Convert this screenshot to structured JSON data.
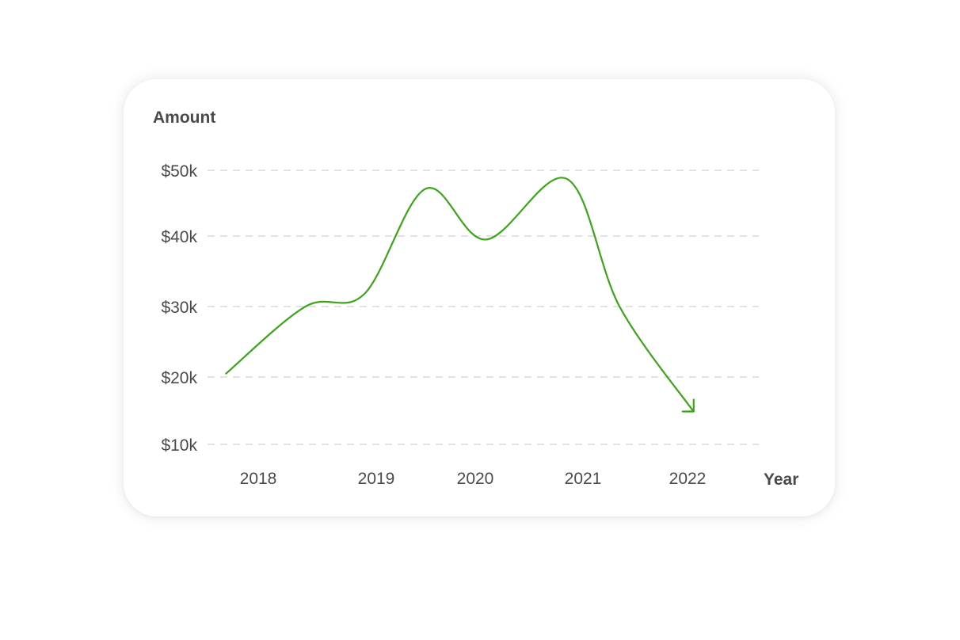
{
  "chart_data": {
    "type": "line",
    "title": "",
    "ylabel": "Amount",
    "xlabel": "Year",
    "ylim": [
      10000,
      50000
    ],
    "y_ticks": [
      {
        "value": 50000,
        "label": "$50k"
      },
      {
        "value": 40000,
        "label": "$40k"
      },
      {
        "value": 30000,
        "label": "$30k"
      },
      {
        "value": 20000,
        "label": "$20k"
      },
      {
        "value": 10000,
        "label": "$10k"
      }
    ],
    "x_ticks": [
      {
        "value": 2018,
        "label": "2018"
      },
      {
        "value": 2019,
        "label": "2019"
      },
      {
        "value": 2020,
        "label": "2020"
      },
      {
        "value": 2021,
        "label": "2021"
      },
      {
        "value": 2022,
        "label": "2022"
      }
    ],
    "series": [
      {
        "color": "#3aa517",
        "arrow_end": true,
        "points": [
          {
            "x": 2017.7,
            "y": 20500
          },
          {
            "x": 2018.4,
            "y": 30000
          },
          {
            "x": 2018.9,
            "y": 31800
          },
          {
            "x": 2019.5,
            "y": 47200
          },
          {
            "x": 2020.1,
            "y": 39500
          },
          {
            "x": 2020.85,
            "y": 48700
          },
          {
            "x": 2021.35,
            "y": 30000
          },
          {
            "x": 2022.05,
            "y": 15000
          }
        ]
      }
    ],
    "grid": true,
    "legend": "none"
  }
}
